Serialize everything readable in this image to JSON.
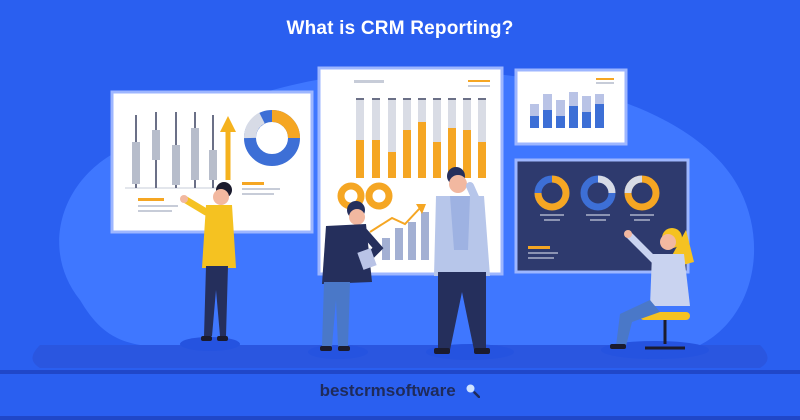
{
  "header": {
    "title": "What is CRM Reporting?"
  },
  "footer": {
    "brand": "bestcrmsoftware",
    "brand_icon": "magnifier-icon"
  },
  "colors": {
    "background": "#2a5ff0",
    "blob": "#3f77ff",
    "floor": "#2047c8",
    "accent_orange": "#f5a623",
    "accent_blue": "#3d6fd6",
    "navy": "#252f5c",
    "gray": "#b7bdcb",
    "dark_panel": "#2e3a6e"
  },
  "icons": [
    "magnifier-icon",
    "arrow-up-icon",
    "trend-arrow-icon"
  ]
}
